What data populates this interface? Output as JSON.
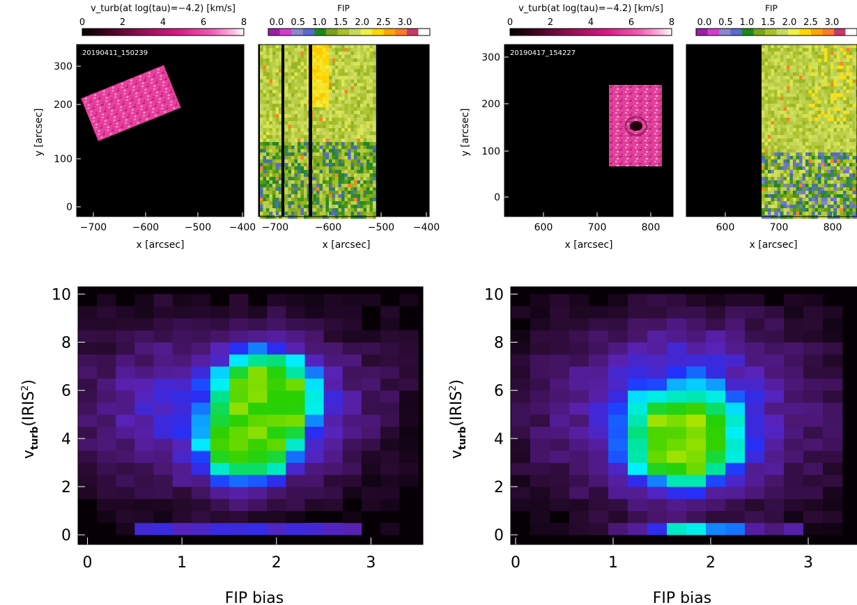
{
  "colors": {
    "background": "#ffffff",
    "axis": "#000000",
    "map_background": "#000000",
    "histogram_colormap": [
      "#060006",
      "#2a0a32",
      "#4a1670",
      "#5a22b6",
      "#2030ff",
      "#00f0ff",
      "#00e28a",
      "#2ad000",
      "#aae400"
    ],
    "vturb_colormap": [
      "#000000",
      "#3c0420",
      "#8a0f4e",
      "#d81a86",
      "#f05cb4",
      "#ffb6e0",
      "#ffffff"
    ],
    "fip_colormap": [
      "#9a1fa4",
      "#d23ccc",
      "#8888cc",
      "#5a6ad0",
      "#1a8a1a",
      "#7aa21a",
      "#a8c02a",
      "#c6d85e",
      "#eef04a",
      "#ffd600",
      "#ffa500",
      "#ff7a2a",
      "#c8386a",
      "#ffffff"
    ]
  },
  "panels": [
    {
      "vturb_map": {
        "colorbar_title": "v_turb(at log(tau)=−4.2) [km/s]",
        "colorbar_ticks": [
          "0",
          "2",
          "4",
          "6",
          "8"
        ],
        "timestamp": "20190411_150239",
        "xlabel": "x [arcsec]",
        "ylabel": "y [arcsec]",
        "xticks": [
          "−700",
          "−600",
          "−500",
          "−400"
        ],
        "yticks": [
          "0",
          "100",
          "200",
          "300"
        ]
      },
      "fip_map": {
        "colorbar_title": "FIP",
        "colorbar_ticks": [
          "0.0",
          "0.5",
          "1.0",
          "1.5",
          "2.0",
          "2.5",
          "3.0"
        ],
        "xlabel": "x [arcsec]",
        "xticks": [
          "−700",
          "−600",
          "−500",
          "−400"
        ]
      }
    },
    {
      "vturb_map": {
        "colorbar_title": "v_turb(at log(tau)=−4.2) [km/s]",
        "colorbar_ticks": [
          "0",
          "2",
          "4",
          "6",
          "8"
        ],
        "timestamp": "20190417_154227",
        "xlabel": "x [arcsec]",
        "ylabel": "y [arcsec]",
        "xticks": [
          "600",
          "700",
          "800"
        ],
        "yticks": [
          "0",
          "100",
          "200",
          "300"
        ]
      },
      "fip_map": {
        "colorbar_title": "FIP",
        "colorbar_ticks": [
          "0.0",
          "0.5",
          "1.0",
          "1.5",
          "2.0",
          "2.5",
          "3.0"
        ],
        "xlabel": "x [arcsec]",
        "xticks": [
          "600",
          "700",
          "800"
        ]
      }
    }
  ],
  "chart_data": [
    {
      "type": "heatmap",
      "title": "",
      "xlabel": "FIP bias",
      "ylabel": "v_turb(IRIS²)",
      "xlim": [
        -0.1,
        3.55
      ],
      "ylim": [
        -0.4,
        10.3
      ],
      "xticks": [
        "0",
        "1",
        "2",
        "3"
      ],
      "yticks": [
        "0",
        "2",
        "4",
        "6",
        "8",
        "10"
      ],
      "bin_x": [
        -0.1,
        0.1,
        0.3,
        0.5,
        0.7,
        0.9,
        1.1,
        1.3,
        1.5,
        1.7,
        1.9,
        2.1,
        2.3,
        2.5,
        2.7,
        2.9,
        3.1,
        3.3,
        3.5
      ],
      "bin_y": [
        0,
        0.5,
        1,
        1.5,
        2,
        2.5,
        3,
        3.5,
        4,
        4.5,
        5,
        5.5,
        6,
        6.5,
        7,
        7.5,
        8,
        8.5,
        9,
        9.5,
        10
      ],
      "peak": {
        "x": 1.9,
        "y": 5.8
      },
      "secondary_peak": {
        "x": 1.7,
        "y": 3.5
      }
    },
    {
      "type": "heatmap",
      "title": "",
      "xlabel": "FIP bias",
      "ylabel": "v_turb(IRIS²)",
      "xlim": [
        -0.05,
        3.5
      ],
      "ylim": [
        -0.4,
        10.3
      ],
      "xticks": [
        "0",
        "1",
        "2",
        "3"
      ],
      "yticks": [
        "0",
        "2",
        "4",
        "6",
        "8",
        "10"
      ],
      "bin_x": [
        -0.05,
        0.15,
        0.35,
        0.55,
        0.75,
        0.95,
        1.15,
        1.35,
        1.55,
        1.75,
        1.95,
        2.15,
        2.35,
        2.55,
        2.75,
        2.95,
        3.15,
        3.35
      ],
      "bin_y": [
        0,
        0.5,
        1,
        1.5,
        2,
        2.5,
        3,
        3.5,
        4,
        4.5,
        5,
        5.5,
        6,
        6.5,
        7,
        7.5,
        8,
        8.5,
        9,
        9.5,
        10
      ],
      "peak": {
        "x": 1.7,
        "y": 3.8
      },
      "secondary_peak": {
        "x": 1.7,
        "y": 0
      }
    }
  ]
}
